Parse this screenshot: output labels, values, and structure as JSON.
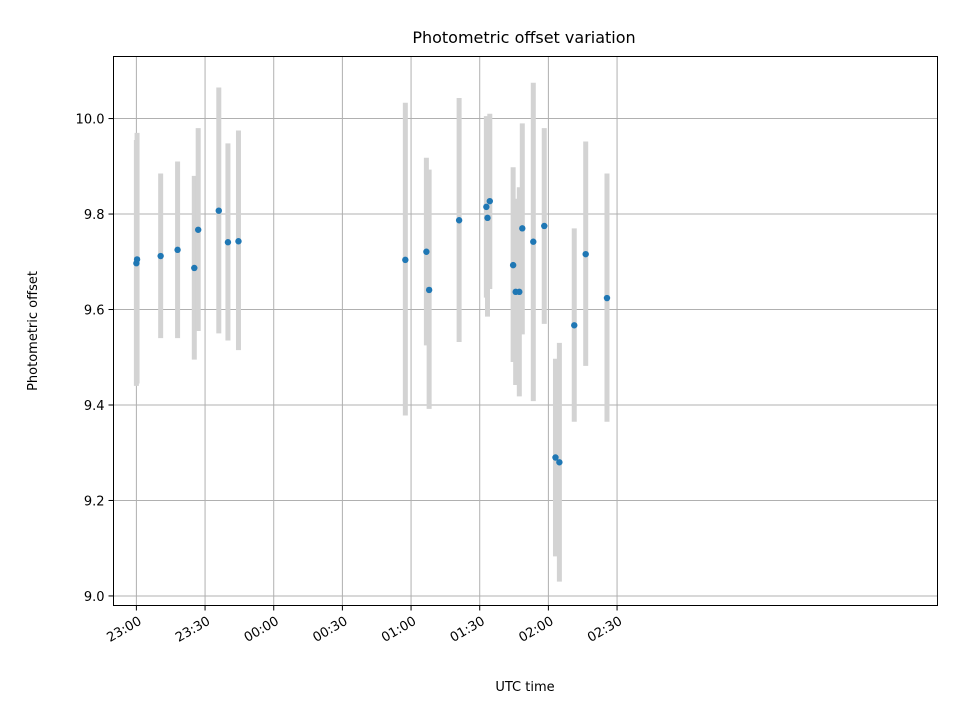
{
  "chart_data": {
    "type": "scatter",
    "title": "Photometric offset variation",
    "xlabel": "UTC time",
    "ylabel": "Photometric offset",
    "x_unit": "minutes after 23:00 UTC",
    "xlim": [
      -10,
      350
    ],
    "ylim": [
      8.98,
      10.13
    ],
    "grid": true,
    "x_tick_values": [
      0,
      30,
      60,
      90,
      120,
      150,
      180,
      210
    ],
    "x_tick_labels": [
      "23:00",
      "23:30",
      "00:00",
      "00:30",
      "01:00",
      "01:30",
      "02:00",
      "02:30"
    ],
    "y_tick_values": [
      9.0,
      9.2,
      9.4,
      9.6,
      9.8,
      10.0
    ],
    "y_tick_labels": [
      "9.0",
      "9.2",
      "9.4",
      "9.6",
      "9.8",
      "10.0"
    ],
    "points": [
      {
        "time": "23:00.0",
        "y": 9.697,
        "ylow": 9.44,
        "yhigh": 9.955
      },
      {
        "time": "23:00.3",
        "y": 9.705,
        "ylow": 9.445,
        "yhigh": 9.97
      },
      {
        "time": "23:10.6",
        "y": 9.712,
        "ylow": 9.54,
        "yhigh": 9.885
      },
      {
        "time": "23:18.0",
        "y": 9.725,
        "ylow": 9.54,
        "yhigh": 9.91
      },
      {
        "time": "23:25.3",
        "y": 9.687,
        "ylow": 9.495,
        "yhigh": 9.88
      },
      {
        "time": "23:27.0",
        "y": 9.767,
        "ylow": 9.555,
        "yhigh": 9.98
      },
      {
        "time": "23:36.0",
        "y": 9.807,
        "ylow": 9.55,
        "yhigh": 10.065
      },
      {
        "time": "23:40.0",
        "y": 9.741,
        "ylow": 9.535,
        "yhigh": 9.948
      },
      {
        "time": "23:44.6",
        "y": 9.743,
        "ylow": 9.515,
        "yhigh": 9.975
      },
      {
        "time": "00:57.5",
        "y": 9.704,
        "ylow": 9.378,
        "yhigh": 10.033
      },
      {
        "time": "01:06.7",
        "y": 9.721,
        "ylow": 9.525,
        "yhigh": 9.918
      },
      {
        "time": "01:07.9",
        "y": 9.641,
        "ylow": 9.392,
        "yhigh": 9.893
      },
      {
        "time": "01:21.0",
        "y": 9.787,
        "ylow": 9.532,
        "yhigh": 10.043
      },
      {
        "time": "01:32.9",
        "y": 9.815,
        "ylow": 9.625,
        "yhigh": 10.005
      },
      {
        "time": "01:33.4",
        "y": 9.792,
        "ylow": 9.585,
        "yhigh": 9.998
      },
      {
        "time": "01:34.4",
        "y": 9.827,
        "ylow": 9.643,
        "yhigh": 10.01
      },
      {
        "time": "01:44.6",
        "y": 9.693,
        "ylow": 9.49,
        "yhigh": 9.898
      },
      {
        "time": "01:45.7",
        "y": 9.637,
        "ylow": 9.442,
        "yhigh": 9.832
      },
      {
        "time": "01:47.3",
        "y": 9.637,
        "ylow": 9.418,
        "yhigh": 9.856
      },
      {
        "time": "01:48.6",
        "y": 9.77,
        "ylow": 9.548,
        "yhigh": 9.99
      },
      {
        "time": "01:53.4",
        "y": 9.742,
        "ylow": 9.408,
        "yhigh": 10.075
      },
      {
        "time": "01:58.2",
        "y": 9.775,
        "ylow": 9.57,
        "yhigh": 9.98
      },
      {
        "time": "02:03.1",
        "y": 9.29,
        "ylow": 9.083,
        "yhigh": 9.497
      },
      {
        "time": "02:04.8",
        "y": 9.28,
        "ylow": 9.03,
        "yhigh": 9.53
      },
      {
        "time": "02:11.3",
        "y": 9.567,
        "ylow": 9.365,
        "yhigh": 9.77
      },
      {
        "time": "02:16.3",
        "y": 9.716,
        "ylow": 9.482,
        "yhigh": 9.952
      },
      {
        "time": "02:25.6",
        "y": 9.624,
        "ylow": 9.365,
        "yhigh": 9.885
      }
    ],
    "marker_color": "#1f77b4",
    "errorbar_color": "#d3d3d3"
  }
}
